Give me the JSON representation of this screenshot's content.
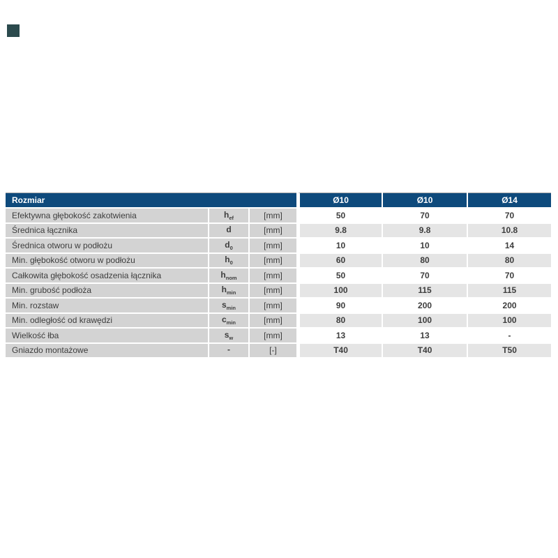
{
  "colors": {
    "header_bg": "#0e4a7c",
    "label_cell_bg": "#d3d3d3",
    "stripe_bg": "#e5e5e5",
    "text": "#3d3d3d",
    "outer_border": "#a6a6a6",
    "logo_mark": "#2b4a4d",
    "header_text": "#ffffff"
  },
  "table": {
    "title_cell": "Rozmiar",
    "columns": [
      "Ø10",
      "Ø10",
      "Ø14"
    ],
    "rows": [
      {
        "label": "Efektywna głębokość zakotwienia",
        "symbol": "h",
        "sub": "ef",
        "unit": "[mm]",
        "values": [
          "50",
          "70",
          "70"
        ]
      },
      {
        "label": "Średnica łącznika",
        "symbol": "d",
        "sub": "",
        "unit": "[mm]",
        "values": [
          "9.8",
          "9.8",
          "10.8"
        ]
      },
      {
        "label": "Średnica otworu w podłożu",
        "symbol": "d",
        "sub": "0",
        "unit": "[mm]",
        "values": [
          "10",
          "10",
          "14"
        ]
      },
      {
        "label": "Min. głębokość otworu w podłożu",
        "symbol": "h",
        "sub": "0",
        "unit": "[mm]",
        "values": [
          "60",
          "80",
          "80"
        ]
      },
      {
        "label": "Całkowita głębokość osadzenia łącznika",
        "symbol": "h",
        "sub": "nom",
        "unit": "[mm]",
        "values": [
          "50",
          "70",
          "70"
        ]
      },
      {
        "label": "Min. grubość podłoża",
        "symbol": "h",
        "sub": "min",
        "unit": "[mm]",
        "values": [
          "100",
          "115",
          "115"
        ]
      },
      {
        "label": "Min. rozstaw",
        "symbol": "s",
        "sub": "min",
        "unit": "[mm]",
        "values": [
          "90",
          "200",
          "200"
        ]
      },
      {
        "label": "Min. odległość od krawędzi",
        "symbol": "c",
        "sub": "min",
        "unit": "[mm]",
        "values": [
          "80",
          "100",
          "100"
        ]
      },
      {
        "label": "Wielkość łba",
        "symbol": "s",
        "sub": "w",
        "unit": "[mm]",
        "values": [
          "13",
          "13",
          "-"
        ]
      },
      {
        "label": "Gniazdo montażowe",
        "symbol": "-",
        "sub": "",
        "unit": "[-]",
        "values": [
          "T40",
          "T40",
          "T50"
        ]
      }
    ]
  }
}
